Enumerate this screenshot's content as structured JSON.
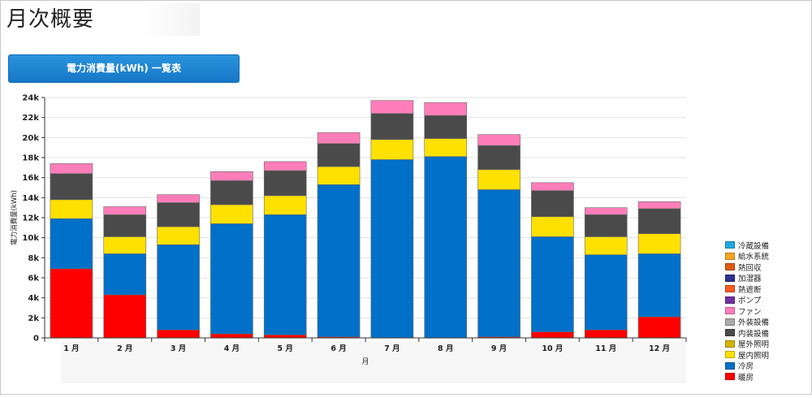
{
  "page": {
    "title": "月次概要"
  },
  "toolbar": {
    "table_button_label": "電力消費量(kWh) 一覧表"
  },
  "chart_data": {
    "type": "bar",
    "stacked": true,
    "xlabel": "月",
    "ylabel": "電力消費量(kWh)",
    "ylim": [
      0,
      24000
    ],
    "yticks": [
      0,
      2000,
      4000,
      6000,
      8000,
      10000,
      12000,
      14000,
      16000,
      18000,
      20000,
      22000,
      24000
    ],
    "ytick_labels": [
      "0",
      "2k",
      "4k",
      "6k",
      "8k",
      "10k",
      "12k",
      "14k",
      "16k",
      "18k",
      "20k",
      "22k",
      "24k"
    ],
    "grid": true,
    "legend_position": "right",
    "categories": [
      "1 月",
      "2 月",
      "3 月",
      "4 月",
      "5 月",
      "6 月",
      "7 月",
      "8 月",
      "9 月",
      "10 月",
      "11 月",
      "12 月"
    ],
    "series": [
      {
        "name": "暖房",
        "color": "#ff0000",
        "values": [
          6900,
          4300,
          800,
          400,
          300,
          100,
          0,
          0,
          100,
          600,
          800,
          2100
        ]
      },
      {
        "name": "冷房",
        "color": "#0070c8",
        "values": [
          5000,
          4100,
          8500,
          11000,
          12000,
          15200,
          17800,
          18100,
          14700,
          9500,
          7500,
          6300
        ]
      },
      {
        "name": "屋内照明",
        "color": "#ffe100",
        "values": [
          1900,
          1700,
          1800,
          1900,
          1900,
          1800,
          2000,
          1800,
          2000,
          2000,
          1800,
          2000
        ]
      },
      {
        "name": "屋外照明",
        "color": "#d4b300",
        "values": [
          0,
          0,
          0,
          0,
          0,
          0,
          0,
          0,
          0,
          0,
          0,
          0
        ]
      },
      {
        "name": "内装設備",
        "color": "#4a4a4a",
        "values": [
          2600,
          2200,
          2400,
          2400,
          2500,
          2300,
          2600,
          2300,
          2400,
          2600,
          2200,
          2500
        ]
      },
      {
        "name": "外装設備",
        "color": "#aaaaaa",
        "values": [
          0,
          0,
          0,
          0,
          0,
          0,
          0,
          0,
          0,
          0,
          0,
          0
        ]
      },
      {
        "name": "ファン",
        "color": "#ff7eb9",
        "values": [
          1000,
          800,
          800,
          900,
          900,
          1100,
          1300,
          1300,
          1100,
          800,
          700,
          700
        ]
      },
      {
        "name": "ポンプ",
        "color": "#7030a0",
        "values": [
          0,
          0,
          0,
          0,
          0,
          0,
          0,
          0,
          0,
          0,
          0,
          0
        ]
      },
      {
        "name": "熱遮断",
        "color": "#ff5a1e",
        "values": [
          0,
          0,
          0,
          0,
          0,
          0,
          0,
          0,
          0,
          0,
          0,
          0
        ]
      },
      {
        "name": "加湿器",
        "color": "#2e3192",
        "values": [
          0,
          0,
          0,
          0,
          0,
          0,
          0,
          0,
          0,
          0,
          0,
          0
        ]
      },
      {
        "name": "熱回収",
        "color": "#e05a0f",
        "values": [
          0,
          0,
          0,
          0,
          0,
          0,
          0,
          0,
          0,
          0,
          0,
          0
        ]
      },
      {
        "name": "給水系統",
        "color": "#f5a623",
        "values": [
          0,
          0,
          0,
          0,
          0,
          0,
          0,
          0,
          0,
          0,
          0,
          0
        ]
      },
      {
        "name": "冷蔵設備",
        "color": "#1fa8e0",
        "values": [
          0,
          0,
          0,
          0,
          0,
          0,
          0,
          0,
          0,
          0,
          0,
          0
        ]
      }
    ],
    "legend_order": [
      "冷蔵設備",
      "給水系統",
      "熱回収",
      "加湿器",
      "熱遮断",
      "ポンプ",
      "ファン",
      "外装設備",
      "内装設備",
      "屋外照明",
      "屋内照明",
      "冷房",
      "暖房"
    ]
  }
}
